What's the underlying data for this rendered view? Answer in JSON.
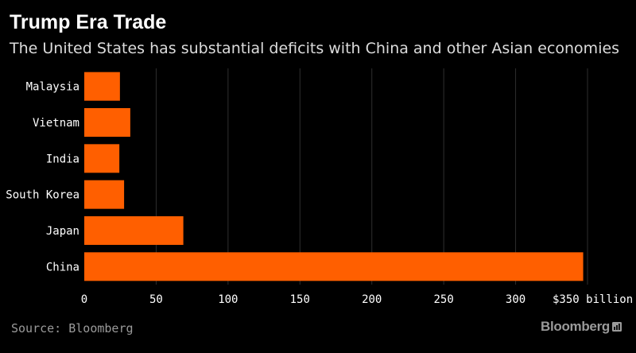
{
  "header": {
    "title": "Trump Era Trade",
    "subtitle": "The United States has substantial deficits with China and other Asian economies"
  },
  "footer": {
    "source": "Source: Bloomberg",
    "brand": "Bloomberg",
    "brand_icon": "bloomberg-chart-icon"
  },
  "colors": {
    "background": "#000000",
    "bar": "#ff5f00",
    "text": "#ffffff",
    "muted": "#9a9a9a",
    "grid": "#2e2e2e"
  },
  "chart_data": {
    "type": "bar",
    "orientation": "horizontal",
    "categories": [
      "Malaysia",
      "Vietnam",
      "India",
      "South Korea",
      "Japan",
      "China"
    ],
    "values": [
      24.8,
      32,
      24.4,
      27.7,
      68.9,
      347
    ],
    "xlim": [
      0,
      350
    ],
    "xticks": [
      0,
      50,
      100,
      150,
      200,
      250,
      300,
      350
    ],
    "xtick_labels": [
      "0",
      "50",
      "100",
      "150",
      "200",
      "250",
      "300",
      "$350 billion"
    ],
    "grid": true,
    "legend": false
  }
}
